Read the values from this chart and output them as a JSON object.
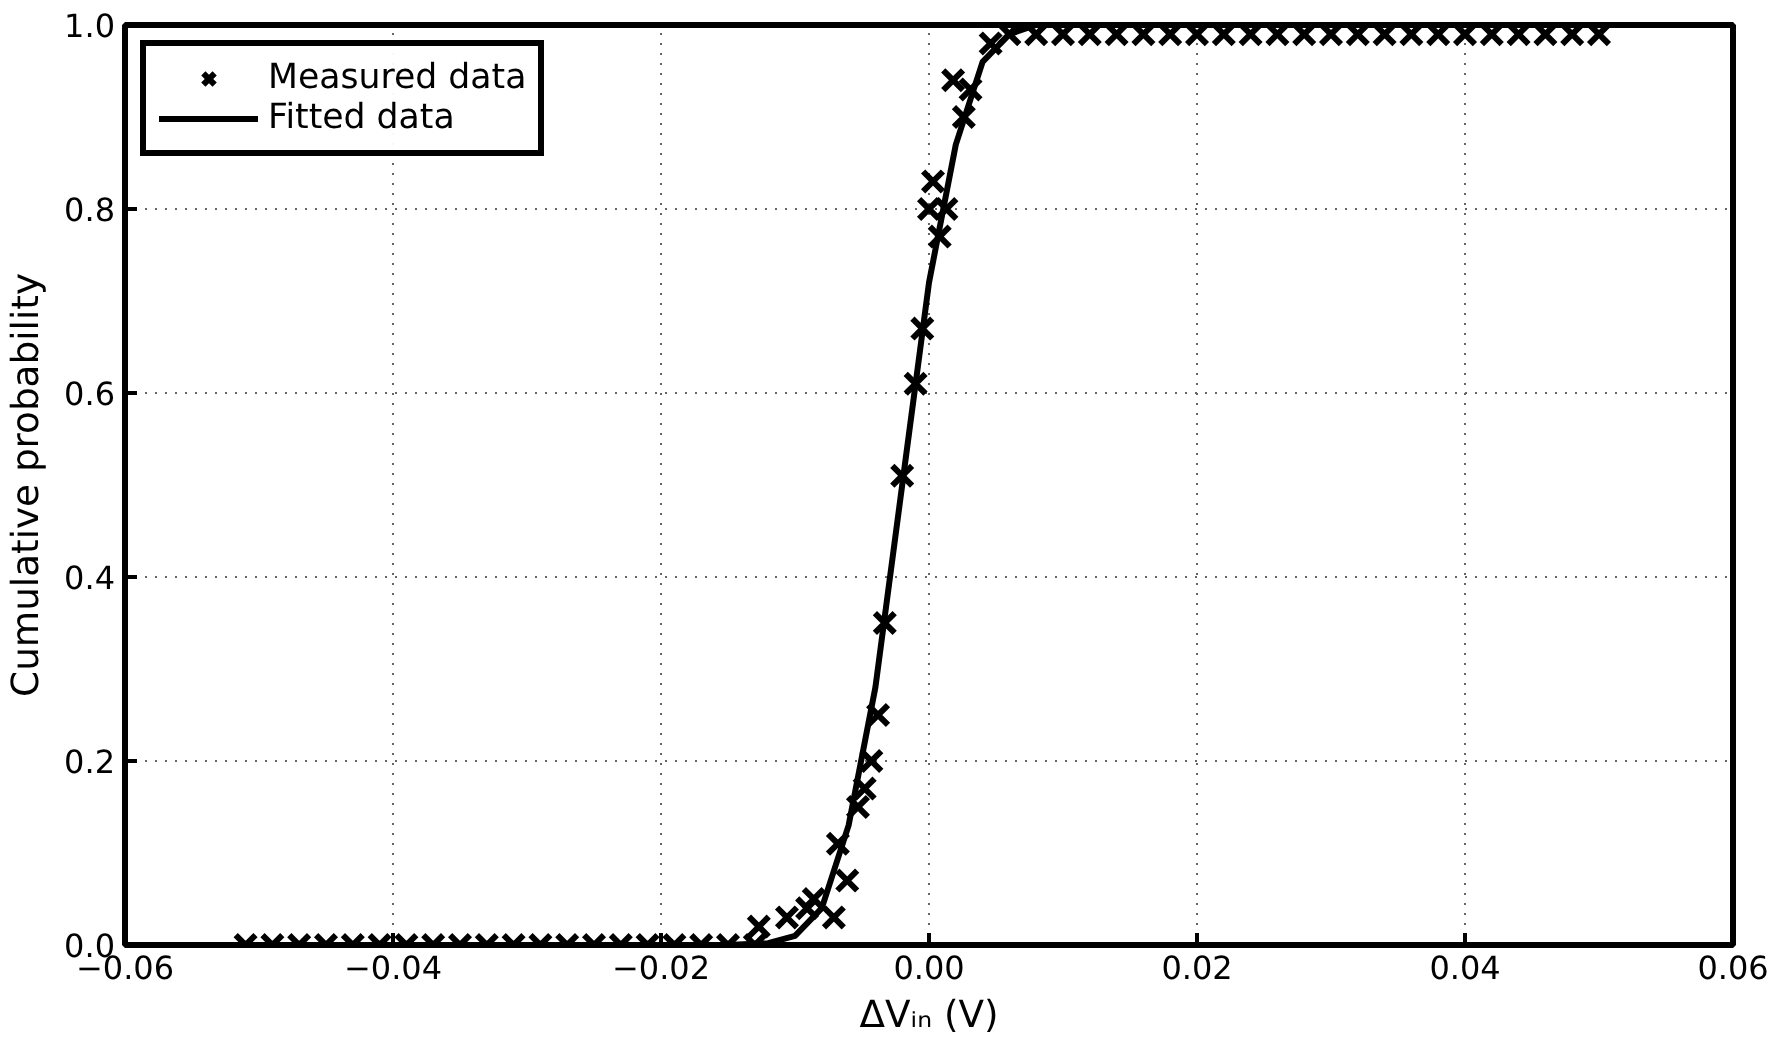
{
  "chart_data": {
    "type": "scatter",
    "xlabel": "ΔVᵢₙ (V)",
    "ylabel": "Cumulative probability",
    "xlim": [
      -0.06,
      0.06
    ],
    "ylim": [
      0,
      1.0
    ],
    "xticks": [
      {
        "value": -0.06,
        "label": "−0.06"
      },
      {
        "value": -0.04,
        "label": "−0.04"
      },
      {
        "value": -0.02,
        "label": "−0.02"
      },
      {
        "value": 0,
        "label": "0.00"
      },
      {
        "value": 0.02,
        "label": "0.02"
      },
      {
        "value": 0.04,
        "label": "0.04"
      },
      {
        "value": 0.06,
        "label": "0.06"
      }
    ],
    "yticks": [
      {
        "value": 0,
        "label": "0.0"
      },
      0.2,
      0.4,
      0.6,
      0.8,
      {
        "value": 1.0,
        "label": "1.0"
      }
    ],
    "grid": true,
    "legend": "top left",
    "series": [
      {
        "name": "Measured data",
        "marker": "cross",
        "color": "#000000",
        "x": [
          -0.051,
          -0.049,
          -0.047,
          -0.045,
          -0.043,
          -0.041,
          -0.039,
          -0.037,
          -0.035,
          -0.033,
          -0.031,
          -0.029,
          -0.027,
          -0.025,
          -0.023,
          -0.021,
          -0.019,
          -0.017,
          -0.015,
          -0.013,
          -0.0127,
          -0.0106,
          -0.0091,
          -0.0086,
          -0.0071,
          -0.0068,
          -0.0061,
          -0.0053,
          -0.0048,
          -0.0043,
          -0.0038,
          -0.0033,
          -0.002,
          -0.001,
          -0.0005,
          0.0,
          0.0003,
          0.0008,
          0.0013,
          0.0018,
          0.0026,
          0.0031,
          0.0046,
          0.006,
          0.008,
          0.01,
          0.012,
          0.014,
          0.016,
          0.018,
          0.02,
          0.022,
          0.024,
          0.026,
          0.028,
          0.03,
          0.032,
          0.034,
          0.036,
          0.038,
          0.04,
          0.042,
          0.044,
          0.046,
          0.048,
          0.05
        ],
        "values": [
          0,
          0,
          0,
          0,
          0,
          0,
          0,
          0,
          0,
          0,
          0,
          0,
          0,
          0,
          0,
          0,
          0,
          0,
          0,
          0,
          0.02,
          0.03,
          0.04,
          0.05,
          0.03,
          0.11,
          0.07,
          0.15,
          0.17,
          0.2,
          0.25,
          0.35,
          0.51,
          0.61,
          0.67,
          0.8,
          0.83,
          0.77,
          0.8,
          0.94,
          0.9,
          0.93,
          0.98,
          0.99,
          0.99,
          0.99,
          0.99,
          0.99,
          0.99,
          0.99,
          0.99,
          0.99,
          0.99,
          0.99,
          0.99,
          0.99,
          0.99,
          0.99,
          0.99,
          0.99,
          0.99,
          0.99,
          0.99,
          0.99,
          0.99,
          0.99
        ]
      },
      {
        "name": "Fitted data",
        "type": "line",
        "line_style": "solid",
        "color": "#000000",
        "x": [
          -0.052,
          -0.015,
          -0.012,
          -0.01,
          -0.008,
          -0.006,
          -0.004,
          -0.002,
          0.0,
          0.002,
          0.004,
          0.006,
          0.008,
          0.011,
          0.051
        ],
        "values": [
          0,
          0,
          0.002,
          0.01,
          0.04,
          0.13,
          0.28,
          0.5,
          0.72,
          0.87,
          0.96,
          0.99,
          1.0,
          1.0,
          1.0
        ]
      }
    ]
  }
}
